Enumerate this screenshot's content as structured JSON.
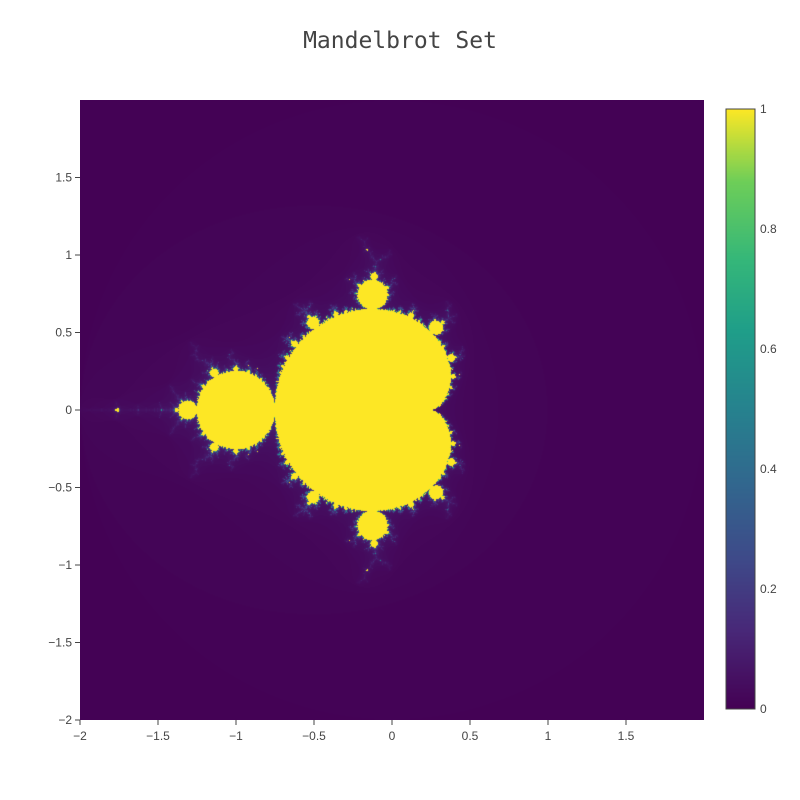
{
  "chart_data": {
    "type": "heatmap",
    "title": "Mandelbrot Set",
    "xlabel": "",
    "ylabel": "",
    "xlim": [
      -2,
      2
    ],
    "ylim": [
      -2,
      2
    ],
    "x_ticks": [
      -2,
      -1.5,
      -1,
      -0.5,
      0,
      0.5,
      1,
      1.5
    ],
    "y_ticks": [
      -2,
      -1.5,
      -1,
      -0.5,
      0,
      0.5,
      1,
      1.5
    ],
    "x_tick_labels": [
      "−2",
      "−1.5",
      "−1",
      "−0.5",
      "0",
      "0.5",
      "1",
      "1.5"
    ],
    "y_tick_labels": [
      "−2",
      "−1.5",
      "−1",
      "−0.5",
      "0",
      "0.5",
      "1",
      "1.5"
    ],
    "grid": false,
    "colorscale": "Viridis",
    "colorbar": {
      "range": [
        0,
        1
      ],
      "ticks": [
        0,
        0.2,
        0.4,
        0.6,
        0.8,
        1
      ],
      "tick_labels": [
        "0",
        "0.2",
        "0.4",
        "0.6",
        "0.8",
        "1"
      ]
    },
    "values": "normalized escape iterations of z → z² + c over the complex plane; 1 = points inside the set"
  },
  "colors": {
    "inside": "#fde725",
    "outside": "#440154",
    "axis_text": "#444444"
  }
}
